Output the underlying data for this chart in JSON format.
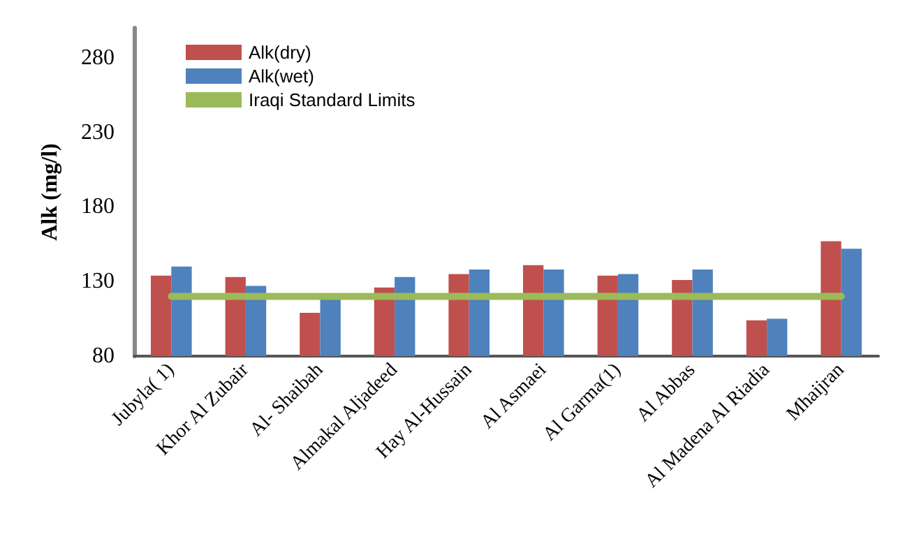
{
  "chart_data": {
    "type": "bar",
    "ylabel": "Alk (mg/l)",
    "categories": [
      "Jubyla( 1)",
      "Khor Al Zubair",
      "Al- Shaibah",
      "Almakal Aljadeed",
      "Hay Al-Hussain",
      "Al Asmaei",
      "Al Garma(1)",
      "Al Abbas",
      "Al Madena Al Riadia",
      "Mhaijran"
    ],
    "series": [
      {
        "name": "Alk(dry)",
        "color": "#c0504d",
        "values": [
          134,
          133,
          109,
          126,
          135,
          141,
          134,
          131,
          104,
          157
        ]
      },
      {
        "name": "Alk(wet)",
        "color": "#4f81bd",
        "values": [
          140,
          127,
          118,
          133,
          138,
          138,
          135,
          138,
          105,
          152
        ]
      },
      {
        "name": "Iraqi Standard Limits",
        "type": "line",
        "color": "#9bbb59",
        "values": [
          120,
          120,
          120,
          120,
          120,
          120,
          120,
          120,
          120,
          120
        ]
      }
    ],
    "ylim": [
      80,
      300
    ],
    "yticks": [
      80,
      130,
      180,
      230,
      280
    ],
    "grid": false,
    "legend": "top left",
    "marker": "none"
  }
}
